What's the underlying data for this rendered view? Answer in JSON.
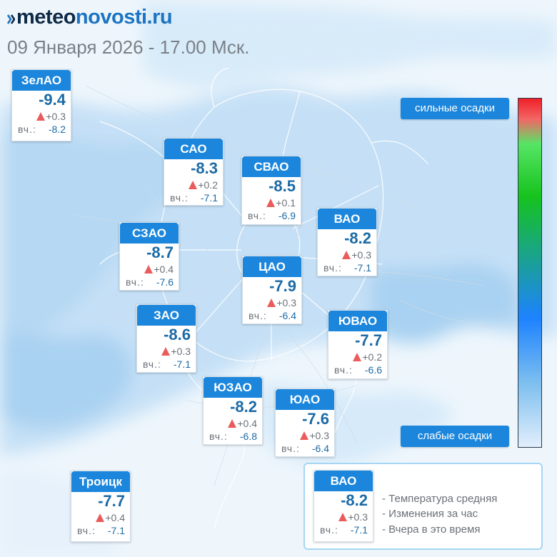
{
  "header": {
    "logo_part1": "meteo",
    "logo_part2": "novosti.ru",
    "date_text": "09 Января 2026 - 17.00 Мск."
  },
  "districts": [
    {
      "id": "zelao",
      "name": "ЗелАО",
      "temp": "-9.4",
      "delta": "+0.3",
      "yesterday_label": "вч.:",
      "yesterday": "-8.2"
    },
    {
      "id": "sao",
      "name": "САО",
      "temp": "-8.3",
      "delta": "+0.2",
      "yesterday_label": "вч.:",
      "yesterday": "-7.1"
    },
    {
      "id": "svao",
      "name": "СВАО",
      "temp": "-8.5",
      "delta": "+0.1",
      "yesterday_label": "вч.:",
      "yesterday": "-6.9"
    },
    {
      "id": "szao",
      "name": "СЗАО",
      "temp": "-8.7",
      "delta": "+0.4",
      "yesterday_label": "вч.:",
      "yesterday": "-7.6"
    },
    {
      "id": "vao",
      "name": "ВАО",
      "temp": "-8.2",
      "delta": "+0.3",
      "yesterday_label": "вч.:",
      "yesterday": "-7.1"
    },
    {
      "id": "tsao",
      "name": "ЦАО",
      "temp": "-7.9",
      "delta": "+0.3",
      "yesterday_label": "вч.:",
      "yesterday": "-6.4"
    },
    {
      "id": "zao",
      "name": "ЗАО",
      "temp": "-8.6",
      "delta": "+0.3",
      "yesterday_label": "вч.:",
      "yesterday": "-7.1"
    },
    {
      "id": "yuvao",
      "name": "ЮВАО",
      "temp": "-7.7",
      "delta": "+0.2",
      "yesterday_label": "вч.:",
      "yesterday": "-6.6"
    },
    {
      "id": "yuzao",
      "name": "ЮЗАО",
      "temp": "-8.2",
      "delta": "+0.4",
      "yesterday_label": "вч.:",
      "yesterday": "-6.8"
    },
    {
      "id": "yuao",
      "name": "ЮАО",
      "temp": "-7.6",
      "delta": "+0.3",
      "yesterday_label": "вч.:",
      "yesterday": "-6.4"
    },
    {
      "id": "troitsk",
      "name": "Троицк",
      "temp": "-7.7",
      "delta": "+0.4",
      "yesterday_label": "вч.:",
      "yesterday": "-7.1"
    }
  ],
  "precip_scale": {
    "top_label": "сильные осадки",
    "bottom_label": "слабые осадки",
    "gradient_colors": [
      "#f0202a",
      "#f26766",
      "#56e565",
      "#16c31d",
      "#1d82ff",
      "#7fc0ef",
      "#e2eefc"
    ]
  },
  "legend": {
    "sample": {
      "name": "ВАО",
      "temp": "-8.2",
      "delta": "+0.3",
      "yesterday_label": "вч.:",
      "yesterday": "-7.1"
    },
    "line1": "- Температура средняя",
    "line2": "- Изменения за час",
    "line3": "- Вчера в это время"
  },
  "colors": {
    "card_header": "#1b86dc",
    "temp_text": "#1b6aa6",
    "rise_arrow": "#ea5c5c",
    "logo_primary": "#1c74c2",
    "logo_dark": "#0e2a47"
  }
}
